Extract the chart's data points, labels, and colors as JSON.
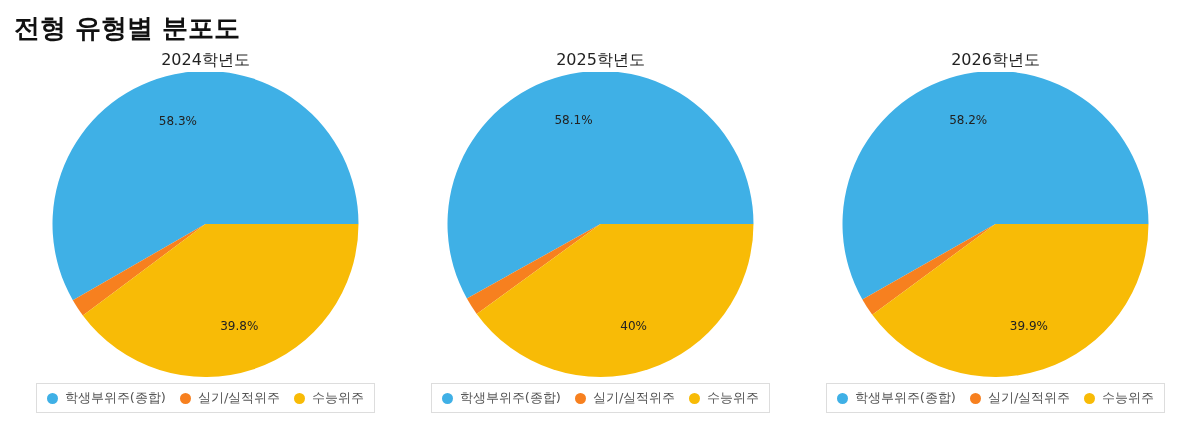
{
  "chart_data": [
    {
      "type": "pie",
      "title": "전형 유형별 분포도",
      "subtitle": "2024학년도",
      "categories": [
        "학생부위주(종합)",
        "실기/실적위주",
        "수능위주"
      ],
      "values": [
        58.3,
        1.9,
        39.8
      ],
      "value_labels": [
        "58.3%",
        null,
        "39.8%"
      ],
      "colors": [
        "#3fb0e6",
        "#f7801f",
        "#f8bb06"
      ],
      "legend": "bottom"
    },
    {
      "type": "pie",
      "subtitle": "2025학년도",
      "categories": [
        "학생부위주(종합)",
        "실기/실적위주",
        "수능위주"
      ],
      "values": [
        58.1,
        1.9,
        40
      ],
      "value_labels": [
        "58.1%",
        null,
        "40%"
      ],
      "colors": [
        "#3fb0e6",
        "#f7801f",
        "#f8bb06"
      ],
      "legend": "bottom"
    },
    {
      "type": "pie",
      "subtitle": "2026학년도",
      "categories": [
        "학생부위주(종합)",
        "실기/실적위주",
        "수능위주"
      ],
      "values": [
        58.2,
        1.9,
        39.9
      ],
      "value_labels": [
        "58.2%",
        null,
        "39.9%"
      ],
      "colors": [
        "#3fb0e6",
        "#f7801f",
        "#f8bb06"
      ],
      "legend": "bottom"
    }
  ]
}
